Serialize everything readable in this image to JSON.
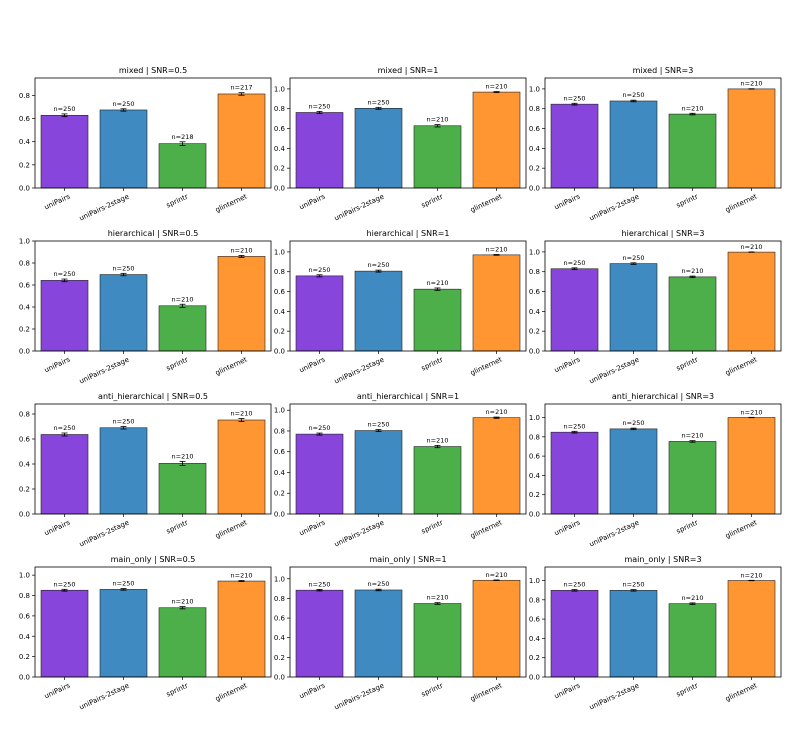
{
  "colors": {
    "uniPairs": "#8845DC",
    "uniPairs-2stage": "#3E8AC1",
    "sprintr": "#4DAF4A",
    "glinternet": "#FF9631"
  },
  "chart_data": [
    {
      "type": "bar",
      "title": "mixed | SNR=0.5",
      "categories": [
        "uniPairs",
        "uniPairs-2stage",
        "sprintr",
        "glinternet"
      ],
      "values": [
        0.628,
        0.674,
        0.383,
        0.812
      ],
      "errors": [
        0.012,
        0.01,
        0.016,
        0.011
      ],
      "labels": [
        "n=250",
        "n=250",
        "n=218",
        "n=217"
      ],
      "ylim": [
        0,
        0.95
      ],
      "yticks": [
        0.0,
        0.2,
        0.4,
        0.6,
        0.8
      ]
    },
    {
      "type": "bar",
      "title": "mixed | SNR=1",
      "categories": [
        "uniPairs",
        "uniPairs-2stage",
        "sprintr",
        "glinternet"
      ],
      "values": [
        0.762,
        0.804,
        0.628,
        0.968
      ],
      "errors": [
        0.011,
        0.01,
        0.012,
        0.005
      ],
      "labels": [
        "n=250",
        "n=250",
        "n=210",
        "n=210"
      ],
      "ylim": [
        0,
        1.11
      ],
      "yticks": [
        0.0,
        0.2,
        0.4,
        0.6,
        0.8,
        1.0
      ]
    },
    {
      "type": "bar",
      "title": "mixed | SNR=3",
      "categories": [
        "uniPairs",
        "uniPairs-2stage",
        "sprintr",
        "glinternet"
      ],
      "values": [
        0.846,
        0.878,
        0.746,
        1.0
      ],
      "errors": [
        0.009,
        0.008,
        0.008,
        0.002
      ],
      "labels": [
        "n=250",
        "n=250",
        "n=210",
        "n=210"
      ],
      "ylim": [
        0,
        1.11
      ],
      "yticks": [
        0.0,
        0.2,
        0.4,
        0.6,
        0.8,
        1.0
      ]
    },
    {
      "type": "bar",
      "title": "hierarchical | SNR=0.5",
      "categories": [
        "uniPairs",
        "uniPairs-2stage",
        "sprintr",
        "glinternet"
      ],
      "values": [
        0.642,
        0.695,
        0.411,
        0.86
      ],
      "errors": [
        0.012,
        0.011,
        0.014,
        0.009
      ],
      "labels": [
        "n=250",
        "n=250",
        "n=210",
        "n=210"
      ],
      "ylim": [
        0,
        1.0
      ],
      "yticks": [
        0.0,
        0.2,
        0.4,
        0.6,
        0.8,
        1.0
      ]
    },
    {
      "type": "bar",
      "title": "hierarchical | SNR=1",
      "categories": [
        "uniPairs",
        "uniPairs-2stage",
        "sprintr",
        "glinternet"
      ],
      "values": [
        0.758,
        0.806,
        0.624,
        0.97
      ],
      "errors": [
        0.011,
        0.01,
        0.012,
        0.004
      ],
      "labels": [
        "n=250",
        "n=250",
        "n=210",
        "n=210"
      ],
      "ylim": [
        0,
        1.11
      ],
      "yticks": [
        0.0,
        0.2,
        0.4,
        0.6,
        0.8,
        1.0
      ]
    },
    {
      "type": "bar",
      "title": "hierarchical | SNR=3",
      "categories": [
        "uniPairs",
        "uniPairs-2stage",
        "sprintr",
        "glinternet"
      ],
      "values": [
        0.83,
        0.882,
        0.748,
        0.998
      ],
      "errors": [
        0.009,
        0.008,
        0.008,
        0.002
      ],
      "labels": [
        "n=250",
        "n=250",
        "n=210",
        "n=210"
      ],
      "ylim": [
        0,
        1.11
      ],
      "yticks": [
        0.0,
        0.2,
        0.4,
        0.6,
        0.8,
        1.0
      ]
    },
    {
      "type": "bar",
      "title": "anti_hierarchical | SNR=0.5",
      "categories": [
        "uniPairs",
        "uniPairs-2stage",
        "sprintr",
        "glinternet"
      ],
      "values": [
        0.636,
        0.69,
        0.405,
        0.752
      ],
      "errors": [
        0.012,
        0.01,
        0.016,
        0.012
      ],
      "labels": [
        "n=250",
        "n=250",
        "n=210",
        "n=210"
      ],
      "ylim": [
        0,
        0.88
      ],
      "yticks": [
        0.0,
        0.2,
        0.4,
        0.6,
        0.8
      ]
    },
    {
      "type": "bar",
      "title": "anti_hierarchical | SNR=1",
      "categories": [
        "uniPairs",
        "uniPairs-2stage",
        "sprintr",
        "glinternet"
      ],
      "values": [
        0.77,
        0.804,
        0.65,
        0.928
      ],
      "errors": [
        0.01,
        0.01,
        0.011,
        0.006
      ],
      "labels": [
        "n=250",
        "n=250",
        "n=210",
        "n=210"
      ],
      "ylim": [
        0,
        1.06
      ],
      "yticks": [
        0.0,
        0.2,
        0.4,
        0.6,
        0.8,
        1.0
      ]
    },
    {
      "type": "bar",
      "title": "anti_hierarchical | SNR=3",
      "categories": [
        "uniPairs",
        "uniPairs-2stage",
        "sprintr",
        "glinternet"
      ],
      "values": [
        0.848,
        0.882,
        0.752,
        1.0
      ],
      "errors": [
        0.009,
        0.008,
        0.008,
        0.002
      ],
      "labels": [
        "n=250",
        "n=250",
        "n=210",
        "n=210"
      ],
      "ylim": [
        0,
        1.14
      ],
      "yticks": [
        0.0,
        0.2,
        0.4,
        0.6,
        0.8,
        1.0
      ]
    },
    {
      "type": "bar",
      "title": "main_only | SNR=0.5",
      "categories": [
        "uniPairs",
        "uniPairs-2stage",
        "sprintr",
        "glinternet"
      ],
      "values": [
        0.852,
        0.86,
        0.68,
        0.942
      ],
      "errors": [
        0.009,
        0.008,
        0.011,
        0.005
      ],
      "labels": [
        "n=250",
        "n=250",
        "n=210",
        "n=210"
      ],
      "ylim": [
        0,
        1.08
      ],
      "yticks": [
        0.0,
        0.2,
        0.4,
        0.6,
        0.8,
        1.0
      ]
    },
    {
      "type": "bar",
      "title": "main_only | SNR=1",
      "categories": [
        "uniPairs",
        "uniPairs-2stage",
        "sprintr",
        "glinternet"
      ],
      "values": [
        0.884,
        0.886,
        0.748,
        0.985
      ],
      "errors": [
        0.008,
        0.008,
        0.009,
        0.003
      ],
      "labels": [
        "n=250",
        "n=250",
        "n=210",
        "n=210"
      ],
      "ylim": [
        0,
        1.12
      ],
      "yticks": [
        0.0,
        0.2,
        0.4,
        0.6,
        0.8,
        1.0
      ]
    },
    {
      "type": "bar",
      "title": "main_only | SNR=3",
      "categories": [
        "uniPairs",
        "uniPairs-2stage",
        "sprintr",
        "glinternet"
      ],
      "values": [
        0.898,
        0.898,
        0.76,
        1.0
      ],
      "errors": [
        0.008,
        0.008,
        0.008,
        0.002
      ],
      "labels": [
        "n=250",
        "n=250",
        "n=210",
        "n=210"
      ],
      "ylim": [
        0,
        1.14
      ],
      "yticks": [
        0.0,
        0.2,
        0.4,
        0.6,
        0.8,
        1.0
      ]
    }
  ]
}
